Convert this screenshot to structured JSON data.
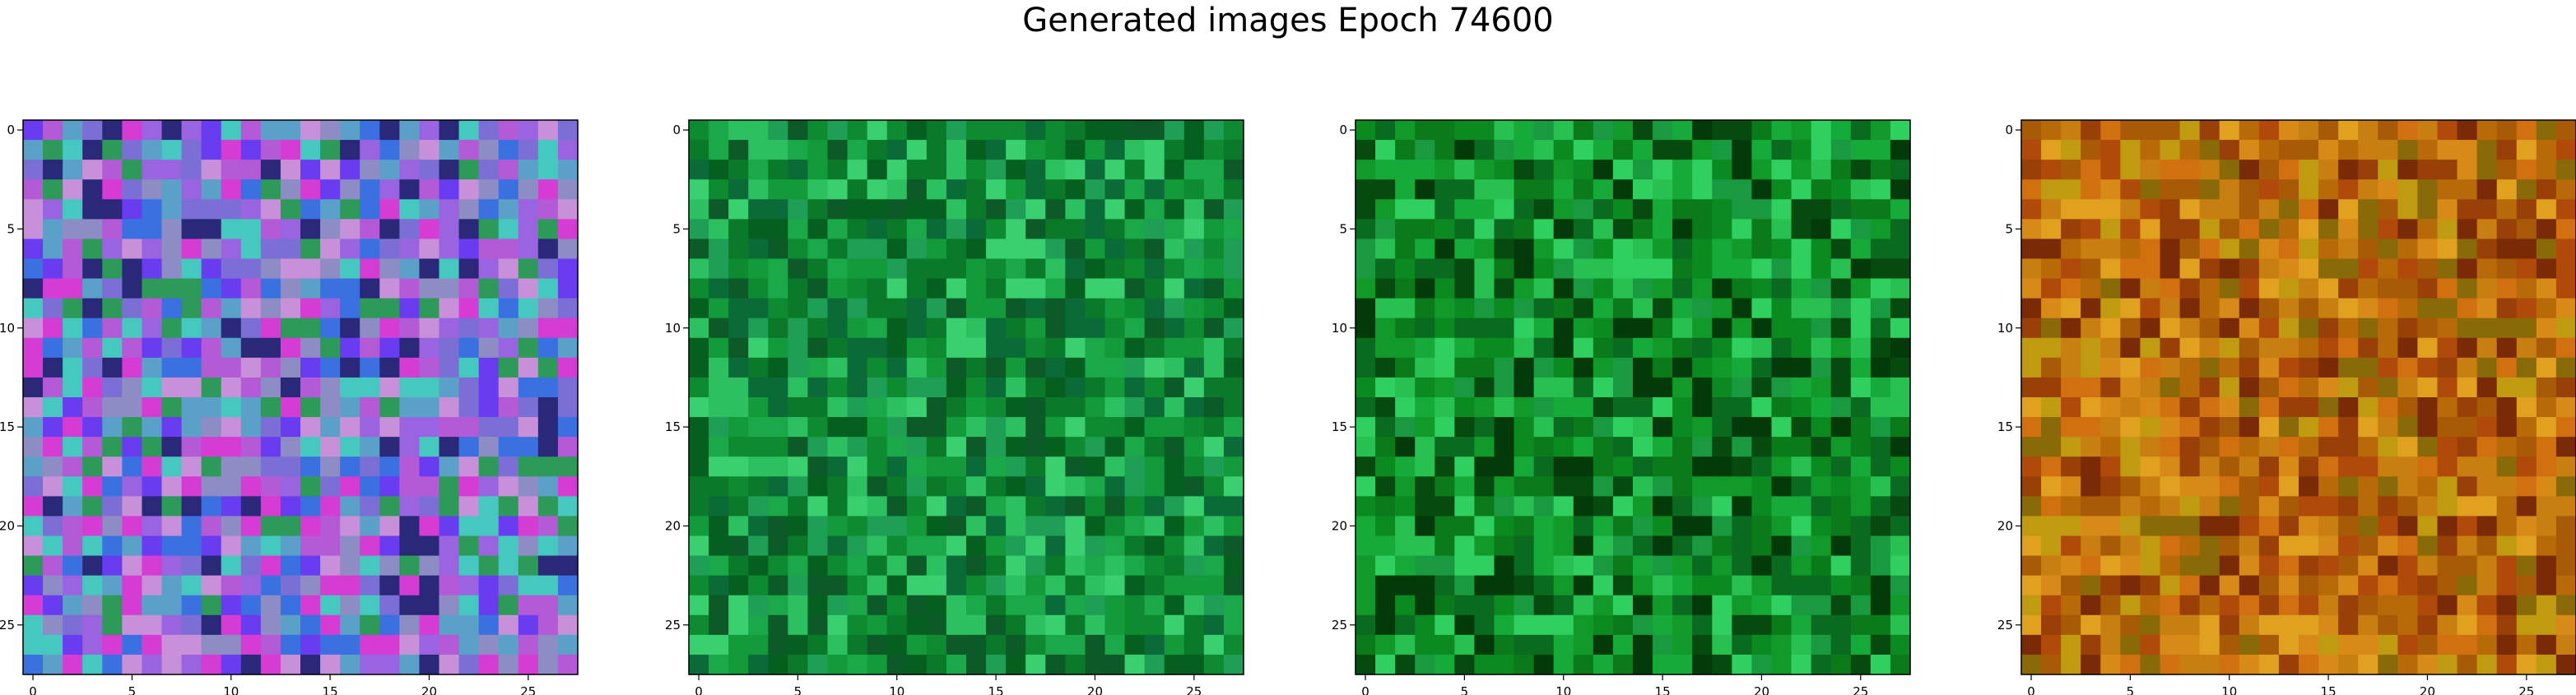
{
  "figure": {
    "suptitle": "Generated images Epoch 74600"
  },
  "chart_data": [
    {
      "type": "heatmap",
      "title": "",
      "grid_size": [
        28,
        28
      ],
      "xlim": [
        -0.5,
        27.5
      ],
      "ylim": [
        27.5,
        -0.5
      ],
      "x_ticks": [
        0,
        5,
        10,
        15,
        20,
        25
      ],
      "y_ticks": [
        0,
        5,
        10,
        15,
        20,
        25
      ],
      "grid": false,
      "palette": [
        "#7b6fd6",
        "#9a64e0",
        "#6a3cf0",
        "#b45ad6",
        "#5aa0c8",
        "#3a70e0",
        "#c890d8",
        "#8e8cc4",
        "#2a2878",
        "#46c8c0",
        "#d43cd4",
        "#2e9a5a"
      ],
      "seed": 11
    },
    {
      "type": "heatmap",
      "title": "",
      "grid_size": [
        28,
        28
      ],
      "xlim": [
        -0.5,
        27.5
      ],
      "ylim": [
        27.5,
        -0.5
      ],
      "x_ticks": [
        0,
        5,
        10,
        15,
        20,
        25
      ],
      "y_ticks": [
        0,
        5,
        10,
        15,
        20,
        25
      ],
      "grid": false,
      "palette": [
        "#0a7a2a",
        "#139a3a",
        "#0e8a30",
        "#1aa848",
        "#056020",
        "#2cc060",
        "#0a6a38",
        "#1f9e55",
        "#0c5a28",
        "#3ad070"
      ],
      "seed": 23
    },
    {
      "type": "heatmap",
      "title": "",
      "grid_size": [
        28,
        28
      ],
      "xlim": [
        -0.5,
        27.5
      ],
      "ylim": [
        27.5,
        -0.5
      ],
      "x_ticks": [
        0,
        5,
        10,
        15,
        20,
        25
      ],
      "y_ticks": [
        0,
        5,
        10,
        15,
        20,
        25
      ],
      "grid": false,
      "palette": [
        "#0a7a1a",
        "#119a2a",
        "#0c8a22",
        "#16aa3a",
        "#064a10",
        "#28c050",
        "#0a6a20",
        "#1a9a40",
        "#033a0a",
        "#30d060"
      ],
      "seed": 37
    },
    {
      "type": "heatmap",
      "title": "",
      "grid_size": [
        28,
        28
      ],
      "xlim": [
        -0.5,
        27.5
      ],
      "ylim": [
        27.5,
        -0.5
      ],
      "x_ticks": [
        0,
        5,
        10,
        15,
        20,
        25
      ],
      "y_ticks": [
        0,
        5,
        10,
        15,
        20,
        25
      ],
      "grid": false,
      "palette": [
        "#b86a08",
        "#c87e10",
        "#a85a06",
        "#d88a18",
        "#b04a0a",
        "#c09a10",
        "#984008",
        "#d07010",
        "#8a6a08",
        "#e0a020",
        "#7a2a06"
      ],
      "seed": 53
    }
  ]
}
